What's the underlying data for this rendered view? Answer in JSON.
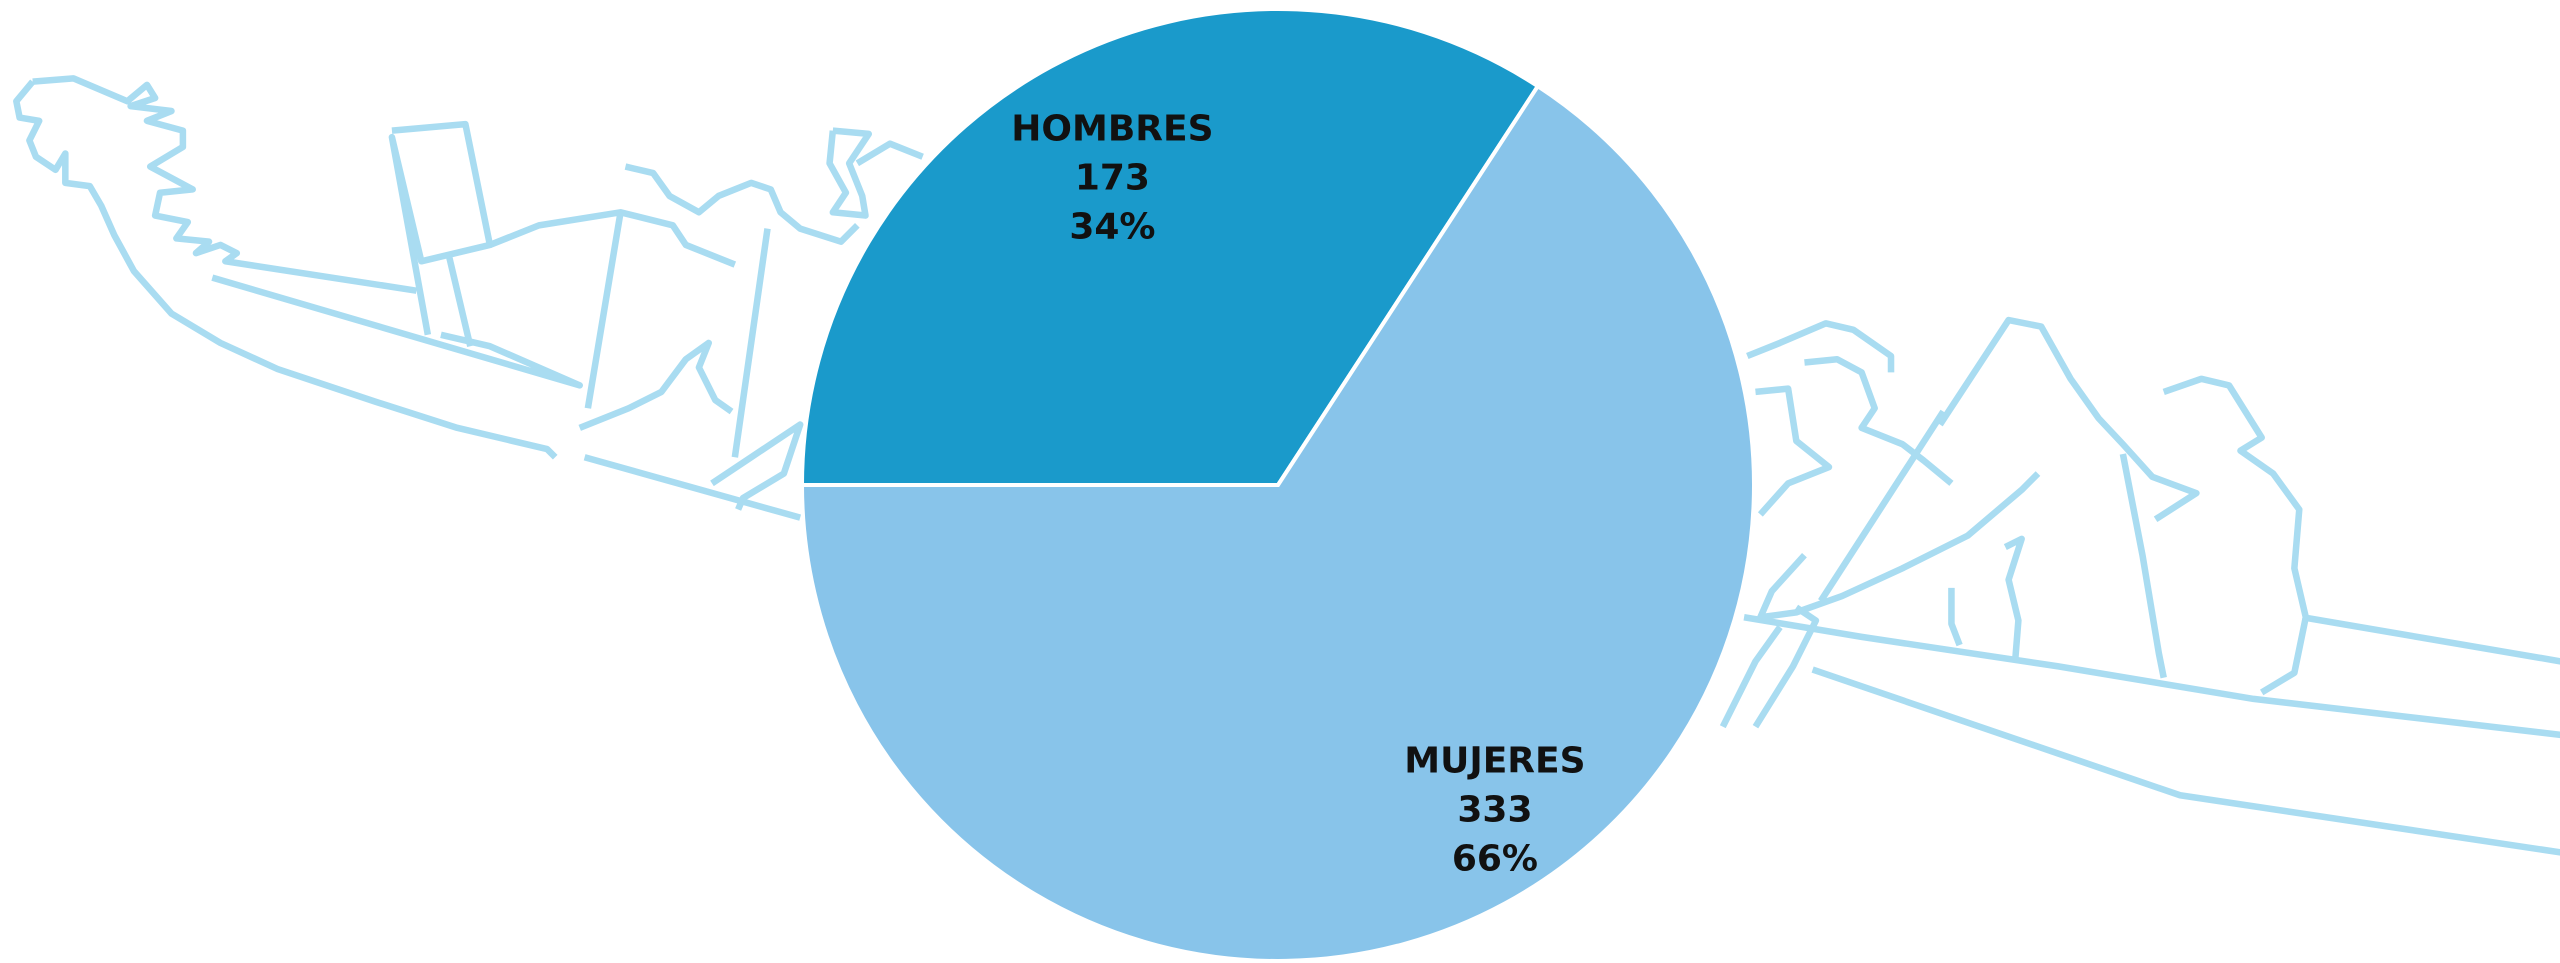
{
  "chart_data": {
    "type": "pie",
    "categories": [
      "HOMBRES",
      "MUJERES"
    ],
    "values": [
      173,
      333
    ],
    "percent_labels": [
      "34%",
      "66%"
    ],
    "colors": [
      "#1a9acb",
      "#88c4ea"
    ]
  }
}
